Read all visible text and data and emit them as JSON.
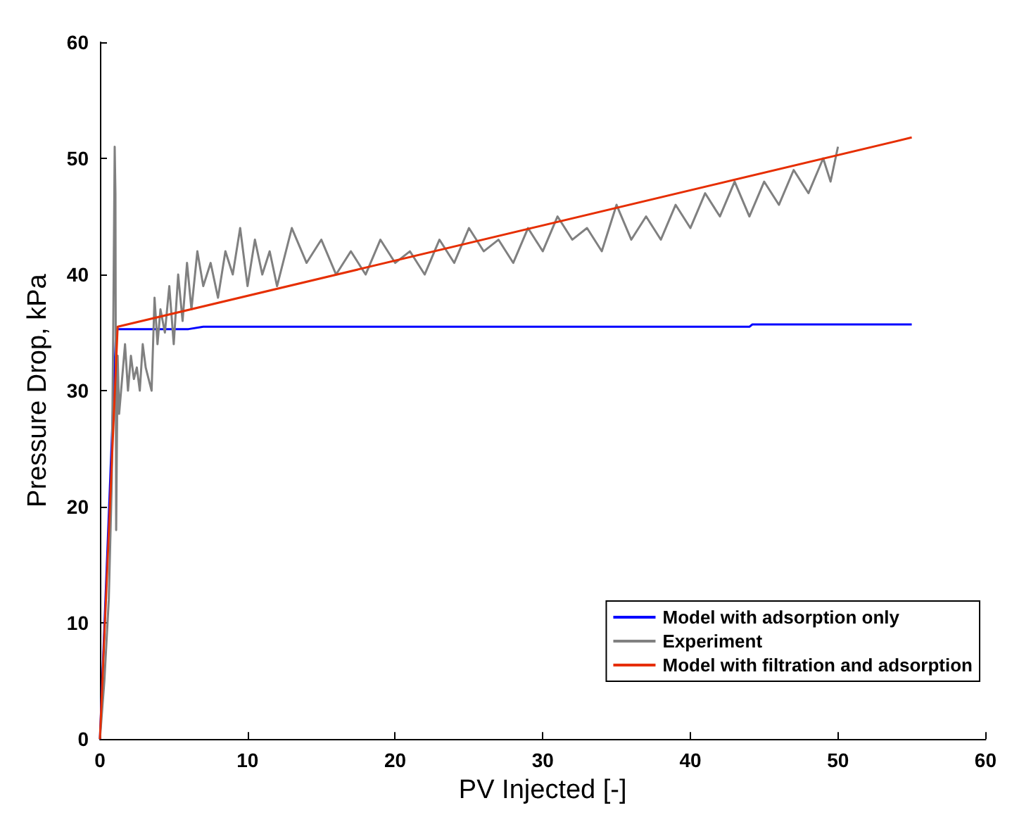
{
  "chart_data": {
    "type": "line",
    "xlabel": "PV Injected [-]",
    "ylabel": "Pressure Drop, kPa",
    "xlim": [
      0,
      60
    ],
    "ylim": [
      0,
      60
    ],
    "xticks": [
      0,
      10,
      20,
      30,
      40,
      50,
      60
    ],
    "yticks": [
      0,
      10,
      20,
      30,
      40,
      50,
      60
    ],
    "grid": false,
    "legend": "bottom right",
    "marker": "none",
    "series": [
      {
        "name": "Model with adsorption only",
        "color": "#0000ff",
        "x": [
          0,
          1.1,
          6,
          7,
          44,
          44.2,
          55
        ],
        "values": [
          0,
          35.3,
          35.3,
          35.5,
          35.5,
          35.7,
          35.7
        ]
      },
      {
        "name": "Experiment",
        "color": "#808080",
        "x": [
          0,
          0.3,
          0.6,
          0.8,
          0.9,
          1.0,
          1.05,
          1.1,
          1.2,
          1.3,
          1.5,
          1.7,
          1.9,
          2.1,
          2.3,
          2.5,
          2.7,
          2.9,
          3.1,
          3.3,
          3.5,
          3.7,
          3.9,
          4.1,
          4.4,
          4.7,
          5.0,
          5.3,
          5.6,
          5.9,
          6.2,
          6.6,
          7.0,
          7.5,
          8.0,
          8.5,
          9.0,
          9.5,
          10.0,
          10.5,
          11.0,
          11.5,
          12.0,
          13,
          14,
          15,
          16,
          17,
          18,
          19,
          20,
          21,
          22,
          23,
          24,
          25,
          26,
          27,
          28,
          29,
          30,
          31,
          32,
          33,
          34,
          35,
          36,
          37,
          38,
          39,
          40,
          41,
          42,
          43,
          44,
          45,
          46,
          47,
          48,
          49,
          49.5,
          50
        ],
        "values": [
          0,
          5,
          12,
          22,
          35,
          51,
          47,
          18,
          33,
          28,
          31,
          34,
          30,
          33,
          31,
          32,
          30,
          34,
          32,
          31,
          30,
          38,
          34,
          37,
          35,
          39,
          34,
          40,
          36,
          41,
          37,
          42,
          39,
          41,
          38,
          42,
          40,
          44,
          39,
          43,
          40,
          42,
          39,
          44,
          41,
          43,
          40,
          42,
          40,
          43,
          41,
          42,
          40,
          43,
          41,
          44,
          42,
          43,
          41,
          44,
          42,
          45,
          43,
          44,
          42,
          46,
          43,
          45,
          43,
          46,
          44,
          47,
          45,
          48,
          45,
          48,
          46,
          49,
          47,
          50,
          48,
          51
        ]
      },
      {
        "name": "Model with filtration and adsorption",
        "color": "#e62e00",
        "x": [
          0,
          1.2,
          55
        ],
        "values": [
          0,
          35.5,
          51.8
        ]
      }
    ]
  }
}
